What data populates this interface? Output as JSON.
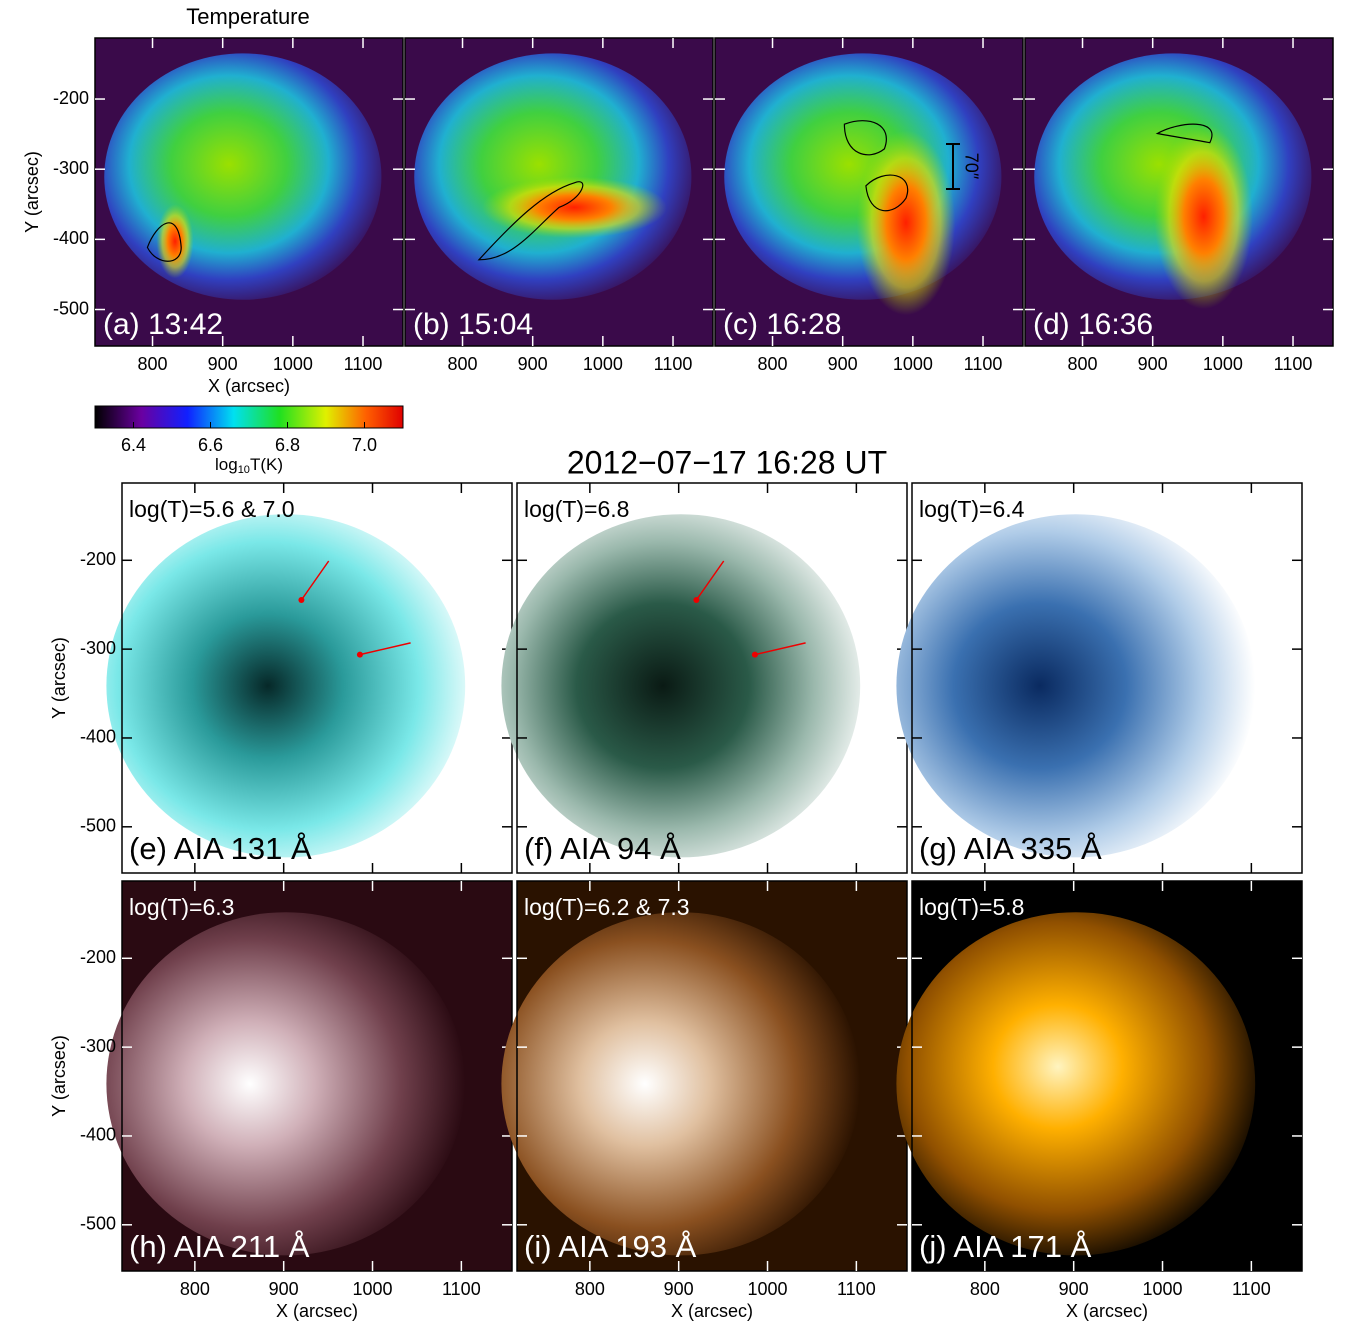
{
  "top_row": {
    "title": "Temperature",
    "panels": [
      "(a) 13:42",
      "(b) 15:04",
      "(c) 16:28",
      "(d) 16:36"
    ],
    "annotation": "70″",
    "xlabel": "X (arcsec)",
    "ylabel": "Y (arcsec)",
    "xlim": [
      718,
      1157
    ],
    "ylim": [
      -552,
      -113
    ],
    "xticks": [
      800,
      900,
      1000,
      1100
    ],
    "yticks": [
      -200,
      -300,
      -400,
      -500
    ]
  },
  "colorbar": {
    "lim": [
      6.3,
      7.1
    ],
    "ticks": [
      6.4,
      6.6,
      6.8,
      {
        "value": 7,
        "label": "7.0"
      }
    ],
    "label": {
      "prefix": "log",
      "subscript": "10",
      "suffix": "T(K)"
    }
  },
  "bottom_rows": {
    "title": "2012−07−17 16:28 UT",
    "panels": [
      {
        "label": "(e) AIA 131 Å",
        "temperature": "log(T)=5.6 & 7.0"
      },
      {
        "label": "(f) AIA 94 Å",
        "temperature": "log(T)=6.8"
      },
      {
        "label": "(g) AIA 335 Å",
        "temperature": "log(T)=6.4"
      },
      {
        "label": "(h) AIA 211 Å",
        "temperature": "log(T)=6.3"
      },
      {
        "label": "(i) AIA 193 Å",
        "temperature": "log(T)=6.2 & 7.3"
      },
      {
        "label": "(j) AIA 171 Å",
        "temperature": "log(T)=5.8"
      }
    ],
    "xlabel": "X (arcsec)",
    "ylabel": "Y (arcsec)",
    "xlim": [
      718,
      1157
    ],
    "ylim": [
      -552,
      -113
    ],
    "xticks": [
      800,
      900,
      1000,
      1100
    ],
    "yticks": [
      -200,
      -300,
      -400,
      -500
    ]
  }
}
